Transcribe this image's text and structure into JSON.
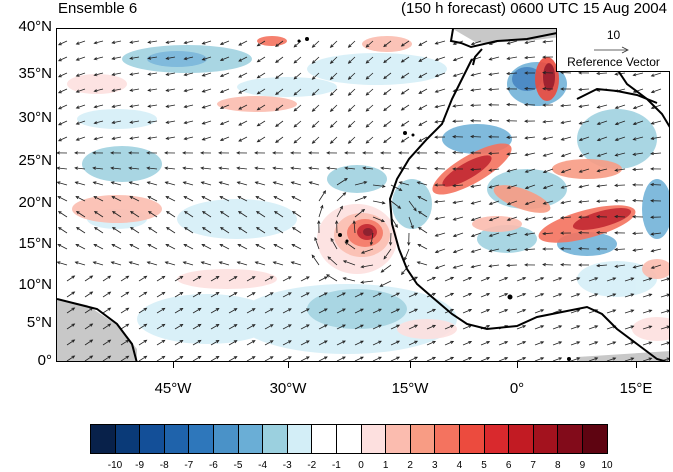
{
  "header": {
    "left_title": "Ensemble 6",
    "right_title": "(150 h forecast) 0600 UTC 15 Aug 2004"
  },
  "map": {
    "lat_labels": [
      "40°N",
      "35°N",
      "30°N",
      "25°N",
      "20°N",
      "15°N",
      "10°N",
      "5°N",
      "0°"
    ],
    "lon_labels": [
      "45°W",
      "30°W",
      "15°W",
      "0°",
      "15°E"
    ],
    "land_color": "#ffffff",
    "missing_color": "#c8c8c8",
    "coastline_color": "#000000"
  },
  "reference_vector": {
    "magnitude": "10",
    "label": "Reference Vector"
  },
  "colorbar": {
    "labels": [
      "-10",
      "-9",
      "-8",
      "-7",
      "-6",
      "-5",
      "-4",
      "-3",
      "-2",
      "-1",
      "0",
      "1",
      "2",
      "3",
      "4",
      "5",
      "6",
      "7",
      "8",
      "9",
      "10"
    ],
    "colors": [
      "#08214a",
      "#0a3a78",
      "#134f98",
      "#1f63ab",
      "#2e77bb",
      "#4a92c8",
      "#6aaed6",
      "#9bd0df",
      "#d3eef7",
      "#ffffff",
      "#ffffff",
      "#fde0df",
      "#fbbcaf",
      "#f89c84",
      "#f4735f",
      "#ec4b3e",
      "#d9292d",
      "#c21b23",
      "#a3121e",
      "#820b1a",
      "#5e0411"
    ]
  }
}
